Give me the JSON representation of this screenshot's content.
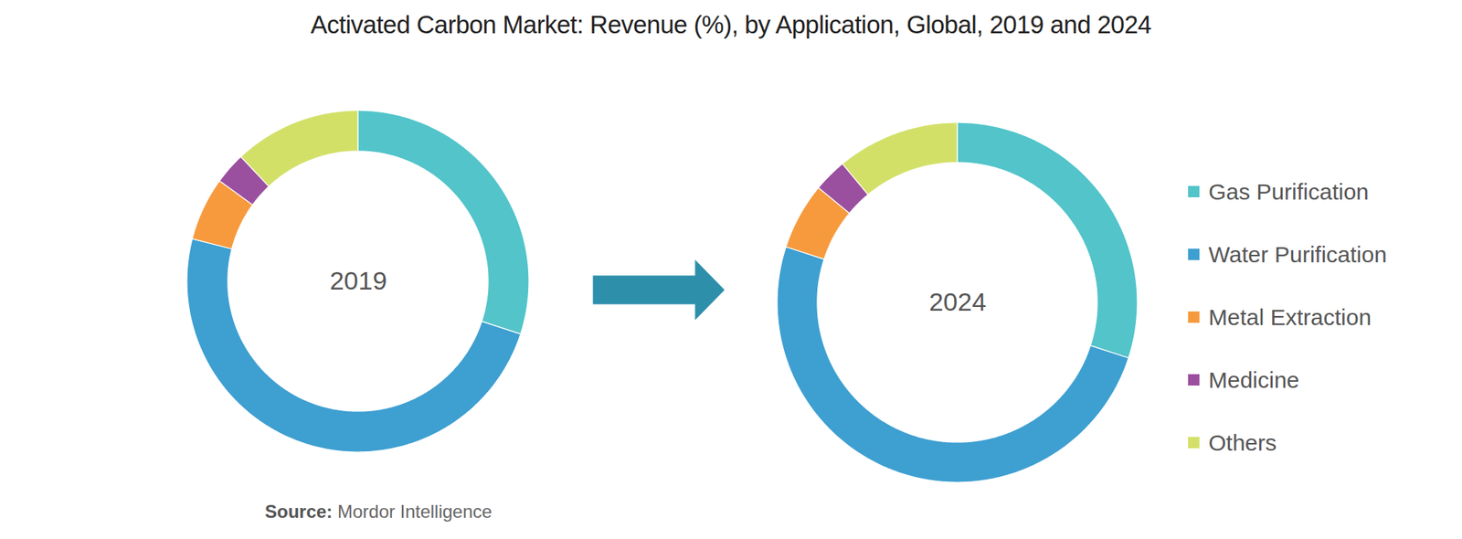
{
  "chart_data": {
    "type": "donut",
    "title": "Activated Carbon Market: Revenue (%), by Application, Global, 2019 and 2024",
    "categories": [
      "Gas Purification",
      "Water Purification",
      "Metal Extraction",
      "Medicine",
      "Others"
    ],
    "colors": [
      "#52c4ca",
      "#3e9fd1",
      "#f79a3e",
      "#9b4f9f",
      "#d3e068"
    ],
    "series": [
      {
        "name": "2019",
        "values": [
          30,
          49,
          6,
          3,
          12
        ]
      },
      {
        "name": "2024",
        "values": [
          30,
          50,
          6,
          3,
          11
        ]
      }
    ],
    "legend": "right",
    "source": {
      "label": "Source:",
      "text": "Mordor Intelligence"
    }
  }
}
